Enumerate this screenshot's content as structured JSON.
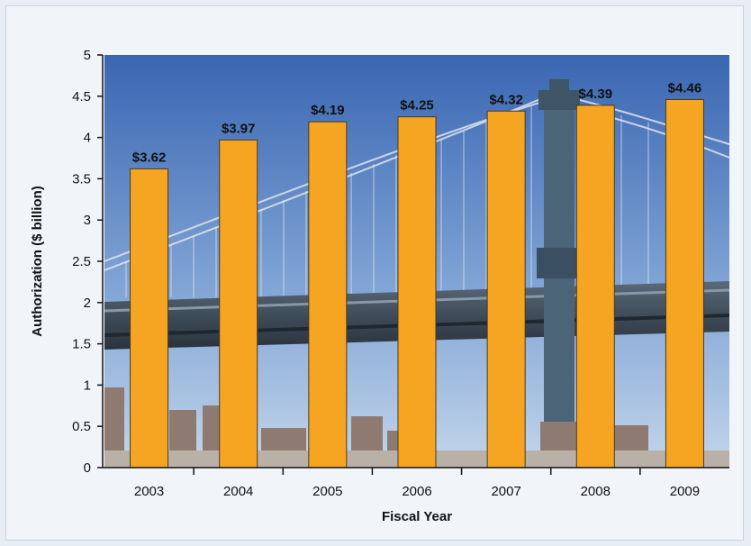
{
  "colors": {
    "bar": "#f6a523",
    "bar_stroke": "#4a3a1c",
    "sky_top": "#3d69b4",
    "sky_bottom": "#a9c3e2",
    "bridge": "#4d5d6e",
    "background": "#f1f5fa"
  },
  "chart_data": {
    "type": "bar",
    "categories": [
      "2003",
      "2004",
      "2005",
      "2006",
      "2007",
      "2008",
      "2009"
    ],
    "values": [
      3.62,
      3.97,
      4.19,
      4.25,
      4.32,
      4.39,
      4.46
    ],
    "data_labels": [
      "$3.62",
      "$3.97",
      "$4.19",
      "$4.25",
      "$4.32",
      "$4.39",
      "$4.46"
    ],
    "xlabel": "Fiscal Year",
    "ylabel": "Authorization ($ billion)",
    "ylim": [
      0,
      5
    ],
    "yticks": [
      "0",
      "0.5",
      "1",
      "1.5",
      "2",
      "2.5",
      "3",
      "3.5",
      "4",
      "4.5",
      "5"
    ],
    "background_image": "bridge-photo"
  }
}
